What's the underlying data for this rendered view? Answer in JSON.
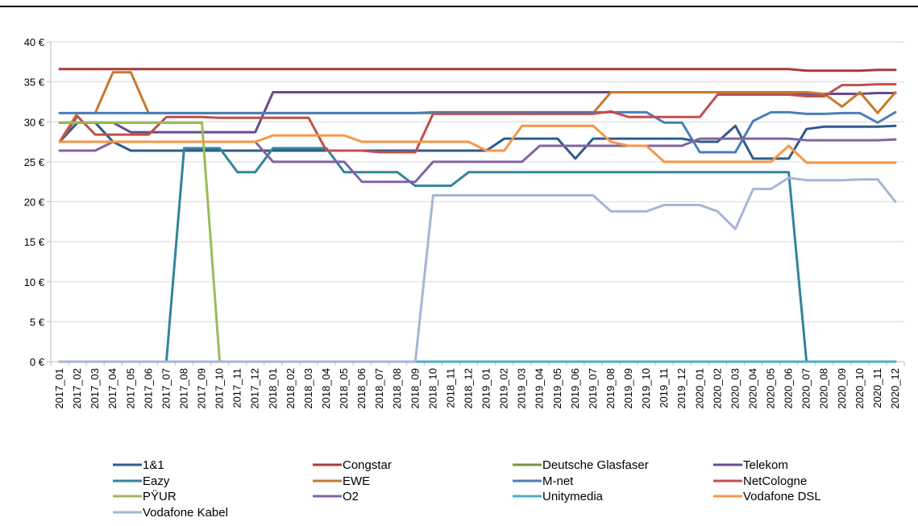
{
  "chart_data": {
    "type": "line",
    "title": "",
    "xlabel": "",
    "ylabel": "",
    "ylim": [
      0,
      40
    ],
    "yticks": [
      "0 €",
      "5 €",
      "10 €",
      "15 €",
      "20 €",
      "25 €",
      "30 €",
      "35 €",
      "40 €"
    ],
    "grid": "horizontal",
    "legend_position": "bottom",
    "categories": [
      "2017_01",
      "2017_02",
      "2017_03",
      "2017_04",
      "2017_05",
      "2017_06",
      "2017_07",
      "2017_08",
      "2017_09",
      "2017_10",
      "2017_11",
      "2017_12",
      "2018_01",
      "2018_02",
      "2018_03",
      "2018_04",
      "2018_05",
      "2018_06",
      "2018_07",
      "2018_08",
      "2018_09",
      "2018_10",
      "2018_11",
      "2018_12",
      "2019_01",
      "2019_02",
      "2019_03",
      "2019_04",
      "2019_05",
      "2019_06",
      "2019_07",
      "2019_08",
      "2019_09",
      "2019_10",
      "2019_11",
      "2019_12",
      "2020_01",
      "2020_02",
      "2020_03",
      "2020_04",
      "2020_05",
      "2020_06",
      "2020_07",
      "2020_08",
      "2020_09",
      "2020_10",
      "2020_11",
      "2020_12"
    ],
    "series": [
      {
        "name": "1&1",
        "color": "#2E5C8A",
        "values": [
          27.5,
          29.9,
          29.9,
          27.5,
          26.4,
          26.4,
          26.4,
          26.4,
          26.4,
          26.4,
          26.4,
          26.4,
          26.4,
          26.4,
          26.4,
          26.4,
          26.4,
          26.4,
          26.4,
          26.4,
          26.4,
          26.4,
          26.4,
          26.4,
          26.4,
          27.9,
          27.9,
          27.9,
          27.9,
          25.4,
          27.9,
          27.9,
          27.9,
          27.9,
          27.9,
          27.9,
          27.5,
          27.5,
          29.5,
          25.4,
          25.4,
          25.4,
          29.1,
          29.4,
          29.4,
          29.4,
          29.4,
          29.5
        ]
      },
      {
        "name": "Congstar",
        "color": "#A93B3B",
        "values": [
          36.6,
          36.6,
          36.6,
          36.6,
          36.6,
          36.6,
          36.6,
          36.6,
          36.6,
          36.6,
          36.6,
          36.6,
          36.6,
          36.6,
          36.6,
          36.6,
          36.6,
          36.6,
          36.6,
          36.6,
          36.6,
          36.6,
          36.6,
          36.6,
          36.6,
          36.6,
          36.6,
          36.6,
          36.6,
          36.6,
          36.6,
          36.6,
          36.6,
          36.6,
          36.6,
          36.6,
          36.6,
          36.6,
          36.6,
          36.6,
          36.6,
          36.6,
          36.4,
          36.4,
          36.4,
          36.4,
          36.5,
          36.5
        ]
      },
      {
        "name": "Deutsche Glasfaser",
        "color": "#77933C",
        "values": [
          29.9,
          29.9,
          29.9,
          29.9,
          29.9,
          29.9,
          29.9,
          29.9,
          29.9,
          null,
          null,
          null,
          null,
          null,
          null,
          null,
          null,
          null,
          null,
          null,
          null,
          null,
          null,
          null,
          null,
          null,
          null,
          null,
          null,
          null,
          null,
          null,
          null,
          null,
          null,
          null,
          null,
          null,
          null,
          null,
          null,
          null,
          null,
          null,
          null,
          null,
          null,
          null
        ]
      },
      {
        "name": "Telekom",
        "color": "#6A4A8C",
        "values": [
          29.9,
          29.9,
          29.9,
          29.9,
          28.7,
          28.7,
          28.7,
          28.7,
          28.7,
          28.7,
          28.7,
          28.7,
          33.7,
          33.7,
          33.7,
          33.7,
          33.7,
          33.7,
          33.7,
          33.7,
          33.7,
          33.7,
          33.7,
          33.7,
          33.7,
          33.7,
          33.7,
          33.7,
          33.7,
          33.7,
          33.7,
          33.7,
          33.7,
          33.7,
          33.7,
          33.7,
          33.7,
          33.7,
          33.7,
          33.7,
          33.7,
          33.7,
          33.5,
          33.5,
          33.5,
          33.5,
          33.6,
          33.6
        ]
      },
      {
        "name": "Eazy",
        "color": "#31859C",
        "values": [
          0,
          0,
          0,
          0,
          0,
          0,
          0,
          26.7,
          26.7,
          26.7,
          23.7,
          23.7,
          26.7,
          26.7,
          26.7,
          26.7,
          23.7,
          23.7,
          23.7,
          23.7,
          22.0,
          22.0,
          22.0,
          23.7,
          23.7,
          23.7,
          23.7,
          23.7,
          23.7,
          23.7,
          23.7,
          23.7,
          23.7,
          23.7,
          23.7,
          23.7,
          23.7,
          23.7,
          23.7,
          23.7,
          23.7,
          23.7,
          0,
          0,
          0,
          0,
          0,
          0
        ]
      },
      {
        "name": "EWE",
        "color": "#C8782E",
        "values": [
          27.5,
          31.1,
          31.1,
          36.2,
          36.2,
          31.1,
          31.1,
          31.1,
          31.1,
          31.1,
          31.1,
          31.1,
          31.1,
          31.1,
          31.1,
          31.1,
          31.1,
          31.1,
          31.1,
          31.1,
          31.1,
          31.1,
          31.1,
          31.1,
          31.1,
          31.1,
          31.1,
          31.1,
          31.1,
          31.1,
          31.1,
          33.7,
          33.7,
          33.7,
          33.7,
          33.7,
          33.7,
          33.7,
          33.7,
          33.7,
          33.7,
          33.7,
          33.7,
          33.5,
          31.9,
          33.7,
          31.1,
          33.7
        ]
      },
      {
        "name": "M-net",
        "color": "#4A7EBB",
        "values": [
          31.1,
          31.1,
          31.1,
          31.1,
          31.1,
          31.1,
          31.1,
          31.1,
          31.1,
          31.1,
          31.1,
          31.1,
          31.1,
          31.1,
          31.1,
          31.1,
          31.1,
          31.1,
          31.1,
          31.1,
          31.1,
          31.2,
          31.2,
          31.2,
          31.2,
          31.2,
          31.2,
          31.2,
          31.2,
          31.2,
          31.2,
          31.2,
          31.2,
          31.2,
          29.9,
          29.9,
          26.2,
          26.2,
          26.2,
          30.1,
          31.2,
          31.2,
          31.0,
          31.0,
          31.1,
          31.1,
          29.9,
          31.2
        ]
      },
      {
        "name": "NetCologne",
        "color": "#C0504D",
        "values": [
          27.5,
          30.7,
          28.4,
          28.4,
          28.4,
          28.4,
          30.6,
          30.6,
          30.6,
          30.5,
          30.5,
          30.5,
          30.5,
          30.5,
          30.5,
          26.4,
          26.4,
          26.4,
          26.2,
          26.2,
          26.2,
          31.0,
          31.0,
          31.0,
          31.0,
          31.0,
          31.0,
          31.0,
          31.0,
          31.0,
          31.0,
          31.3,
          30.6,
          30.6,
          30.6,
          30.6,
          30.6,
          33.4,
          33.4,
          33.4,
          33.4,
          33.4,
          33.2,
          33.2,
          34.6,
          34.6,
          34.7,
          34.7
        ]
      },
      {
        "name": "PŸUR",
        "color": "#9BBB59",
        "values": [
          29.9,
          29.9,
          29.9,
          29.9,
          29.9,
          29.9,
          29.9,
          29.9,
          29.9,
          0,
          0,
          0,
          0,
          0,
          0,
          0,
          0,
          0,
          0,
          0,
          0,
          0,
          0,
          0,
          0,
          0,
          0,
          0,
          0,
          0,
          0,
          0,
          0,
          0,
          0,
          0,
          0,
          0,
          0,
          0,
          0,
          0,
          0,
          0,
          0,
          0,
          0,
          0
        ]
      },
      {
        "name": "O2",
        "color": "#8064A2",
        "values": [
          26.4,
          26.4,
          26.4,
          27.5,
          27.5,
          27.5,
          27.5,
          27.5,
          27.5,
          27.5,
          27.5,
          27.5,
          25.0,
          25.0,
          25.0,
          25.0,
          25.0,
          22.5,
          22.5,
          22.5,
          22.5,
          25.0,
          25.0,
          25.0,
          25.0,
          25.0,
          25.0,
          27.0,
          27.0,
          27.0,
          27.0,
          27.0,
          27.0,
          27.0,
          27.0,
          27.0,
          27.9,
          27.9,
          27.9,
          27.9,
          27.9,
          27.9,
          27.7,
          27.7,
          27.7,
          27.7,
          27.7,
          27.8
        ]
      },
      {
        "name": "Unitymedia",
        "color": "#4BACC6",
        "values": [
          0,
          0,
          0,
          0,
          0,
          0,
          0,
          0,
          0,
          0,
          0,
          0,
          0,
          0,
          0,
          0,
          0,
          0,
          0,
          0,
          0,
          0,
          0,
          0,
          0,
          0,
          0,
          0,
          0,
          0,
          0,
          0,
          0,
          0,
          0,
          0,
          0,
          0,
          0,
          0,
          0,
          0,
          0,
          0,
          0,
          0,
          0,
          0
        ]
      },
      {
        "name": "Vodafone DSL",
        "color": "#F79646",
        "values": [
          27.5,
          27.5,
          27.5,
          27.5,
          27.5,
          27.5,
          27.5,
          27.5,
          27.5,
          27.5,
          27.5,
          27.5,
          28.3,
          28.3,
          28.3,
          28.3,
          28.3,
          27.5,
          27.5,
          27.5,
          27.5,
          27.5,
          27.5,
          27.5,
          26.4,
          26.4,
          29.5,
          29.5,
          29.5,
          29.5,
          29.5,
          27.5,
          27.0,
          27.0,
          25.0,
          25.0,
          25.0,
          25.0,
          25.0,
          25.0,
          25.0,
          27.0,
          24.9,
          24.9,
          24.9,
          24.9,
          24.9,
          24.9
        ]
      },
      {
        "name": "Vodafone Kabel",
        "color": "#A5B6D6",
        "values": [
          0,
          0,
          0,
          0,
          0,
          0,
          0,
          0,
          0,
          0,
          0,
          0,
          0,
          0,
          0,
          0,
          0,
          0,
          0,
          0,
          0,
          20.8,
          20.8,
          20.8,
          20.8,
          20.8,
          20.8,
          20.8,
          20.8,
          20.8,
          20.8,
          18.8,
          18.8,
          18.8,
          19.6,
          19.6,
          19.6,
          18.8,
          16.6,
          21.6,
          21.6,
          23.0,
          22.7,
          22.7,
          22.7,
          22.8,
          22.8,
          20.0
        ]
      }
    ]
  }
}
